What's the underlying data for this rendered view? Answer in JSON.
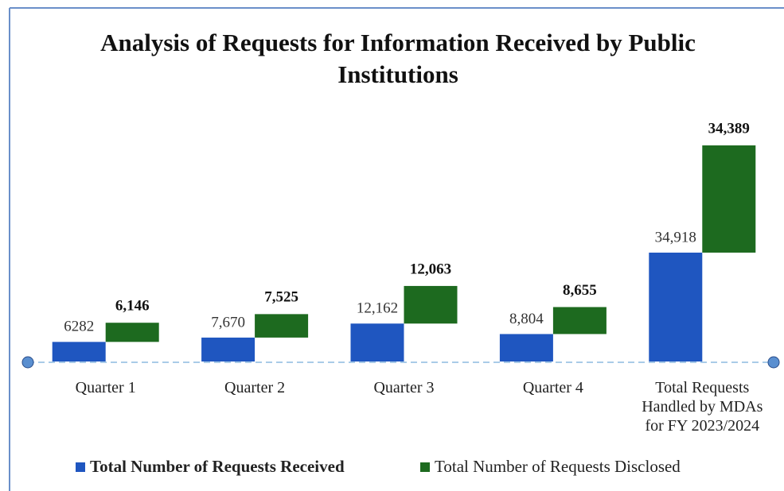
{
  "chart_data": {
    "type": "bar",
    "title": "Analysis of Requests for Information Received by Public Institutions",
    "categories": [
      "Quarter 1",
      "Quarter 2",
      "Quarter 3",
      "Quarter 4",
      "Total Requests Handled by MDAs for FY 2023/2024"
    ],
    "series": [
      {
        "name": "Total Number of Requests Received",
        "color": "#1f56c0",
        "values": [
          6282,
          7670,
          12162,
          8804,
          34918
        ],
        "value_labels": [
          "6282",
          "7,670",
          "12,162",
          "8,804",
          "34,918"
        ]
      },
      {
        "name": "Total Number of Requests Disclosed",
        "color": "#1d6a1f",
        "values": [
          6146,
          7525,
          12063,
          8655,
          34389
        ],
        "value_labels": [
          "6,146",
          "7,525",
          "12,063",
          "8,655",
          "34,389"
        ]
      }
    ],
    "legend": "bottom"
  }
}
